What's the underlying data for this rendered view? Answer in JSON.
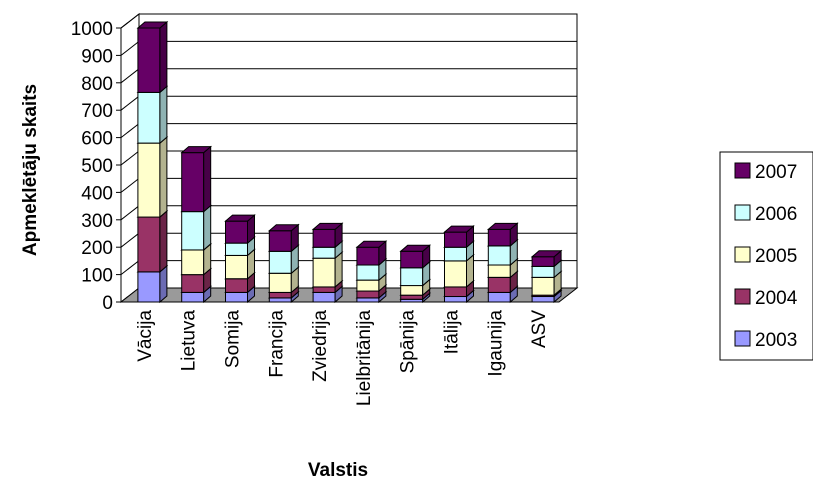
{
  "chart_data": {
    "type": "bar",
    "stacked": true,
    "three_d": true,
    "xlabel": "Valstis",
    "ylabel": "Apmeklētāju skaits",
    "ylim": [
      0,
      1000
    ],
    "yticks": [
      0,
      100,
      200,
      300,
      400,
      500,
      600,
      700,
      800,
      900,
      1000
    ],
    "grid": true,
    "legend_position": "right",
    "categories": [
      "Vācija",
      "Lietuva",
      "Somija",
      "Francija",
      "Zviedrija",
      "Lielbritānija",
      "Spānija",
      "Itālija",
      "Igaunija",
      "ASV"
    ],
    "series": [
      {
        "name": "2003",
        "color": "#9999ff",
        "values": [
          110,
          35,
          35,
          15,
          35,
          15,
          10,
          20,
          35,
          20
        ]
      },
      {
        "name": "2004",
        "color": "#993366",
        "values": [
          200,
          65,
          50,
          20,
          20,
          25,
          15,
          35,
          55,
          5
        ]
      },
      {
        "name": "2005",
        "color": "#ffffcc",
        "values": [
          270,
          90,
          85,
          70,
          105,
          40,
          35,
          95,
          45,
          65
        ]
      },
      {
        "name": "2006",
        "color": "#ccffff",
        "values": [
          185,
          140,
          45,
          80,
          40,
          55,
          65,
          50,
          70,
          40
        ]
      },
      {
        "name": "2007",
        "color": "#660066",
        "values": [
          235,
          215,
          80,
          75,
          65,
          65,
          60,
          55,
          60,
          35
        ]
      }
    ]
  }
}
